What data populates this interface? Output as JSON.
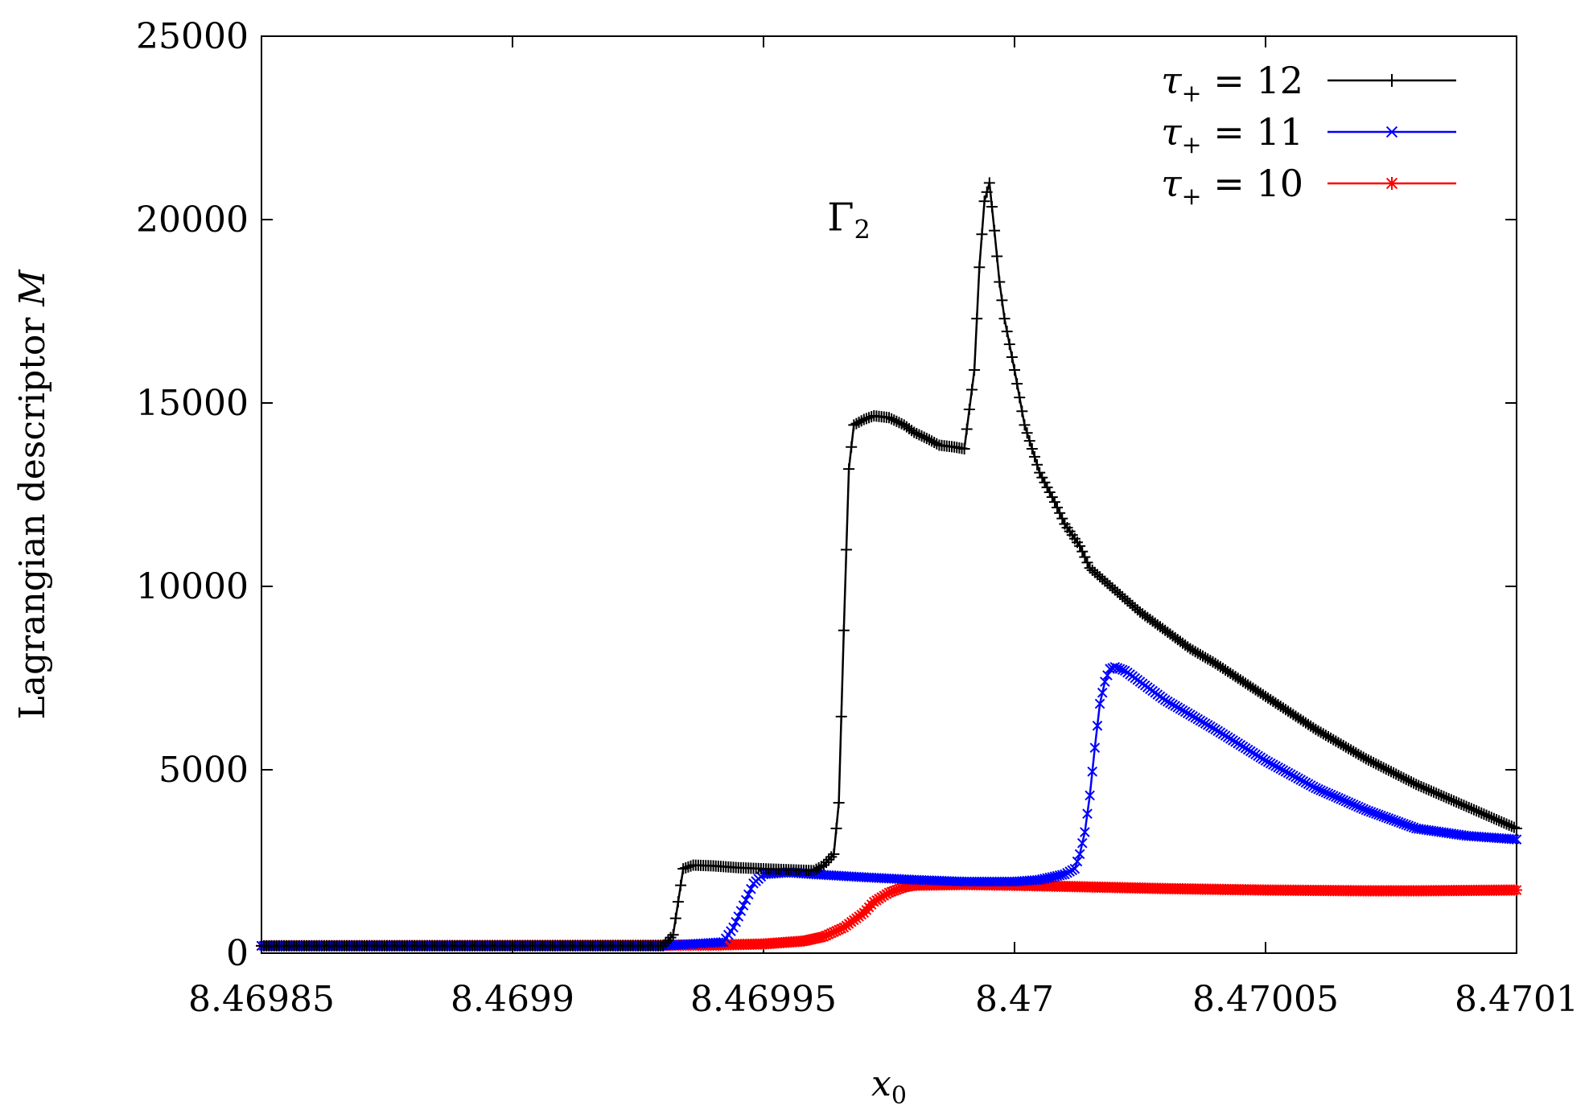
{
  "chart_data": {
    "type": "line",
    "title": "",
    "xlabel": "x",
    "xlabel_sub": "0",
    "ylabel": "Lagrangian descriptor",
    "ylabel_symbol": "M",
    "xlim": [
      8.46985,
      8.4701
    ],
    "ylim": [
      0,
      25000
    ],
    "xticks": [
      8.46985,
      8.4699,
      8.46995,
      8.47,
      8.47005,
      8.4701
    ],
    "xtick_labels": [
      "8.46985",
      "8.4699",
      "8.46995",
      "8.47",
      "8.47005",
      "8.4701"
    ],
    "yticks": [
      0,
      5000,
      10000,
      15000,
      20000,
      25000
    ],
    "ytick_labels": [
      "0",
      "5000",
      "10000",
      "15000",
      "20000",
      "25000"
    ],
    "grid": false,
    "legend_position": "top-right",
    "annotation": {
      "text": "Γ",
      "sub": "2",
      "x": 8.469967,
      "y": 19700
    },
    "series": [
      {
        "name": "τ+ = 12",
        "legend_tau": "τ",
        "legend_sub": "+",
        "legend_value": "= 12",
        "color": "#000000",
        "marker": "plus",
        "points": [
          [
            8.46985,
            200
          ],
          [
            8.46993,
            200
          ],
          [
            8.469932,
            500
          ],
          [
            8.469934,
            2300
          ],
          [
            8.469936,
            2400
          ],
          [
            8.46994,
            2380
          ],
          [
            8.469945,
            2330
          ],
          [
            8.46995,
            2300
          ],
          [
            8.46996,
            2250
          ],
          [
            8.469962,
            2400
          ],
          [
            8.469964,
            2700
          ],
          [
            8.469965,
            4100
          ],
          [
            8.469966,
            8800
          ],
          [
            8.469967,
            13200
          ],
          [
            8.469968,
            14400
          ],
          [
            8.46997,
            14550
          ],
          [
            8.469972,
            14650
          ],
          [
            8.469975,
            14600
          ],
          [
            8.469978,
            14400
          ],
          [
            8.46998,
            14200
          ],
          [
            8.469983,
            14000
          ],
          [
            8.469985,
            13850
          ],
          [
            8.469988,
            13800
          ],
          [
            8.46999,
            13750
          ],
          [
            8.469992,
            15900
          ],
          [
            8.469993,
            18700
          ],
          [
            8.469994,
            20500
          ],
          [
            8.469995,
            21000
          ],
          [
            8.469996,
            19700
          ],
          [
            8.469997,
            18300
          ],
          [
            8.469998,
            17300
          ],
          [
            8.47,
            15900
          ],
          [
            8.470002,
            14400
          ],
          [
            8.470005,
            13100
          ],
          [
            8.470008,
            12300
          ],
          [
            8.47001,
            11700
          ],
          [
            8.470013,
            11100
          ],
          [
            8.470015,
            10500
          ],
          [
            8.47002,
            9900
          ],
          [
            8.470025,
            9300
          ],
          [
            8.47003,
            8800
          ],
          [
            8.470035,
            8300
          ],
          [
            8.47004,
            7900
          ],
          [
            8.47005,
            7000
          ],
          [
            8.47006,
            6100
          ],
          [
            8.47007,
            5300
          ],
          [
            8.47008,
            4600
          ],
          [
            8.47009,
            4000
          ],
          [
            8.4701,
            3400
          ]
        ]
      },
      {
        "name": "τ+ = 11",
        "legend_tau": "τ",
        "legend_sub": "+",
        "legend_value": "= 11",
        "color": "#0000ff",
        "marker": "cross",
        "points": [
          [
            8.46985,
            200
          ],
          [
            8.46993,
            200
          ],
          [
            8.469942,
            300
          ],
          [
            8.469944,
            700
          ],
          [
            8.469946,
            1300
          ],
          [
            8.469948,
            1900
          ],
          [
            8.46995,
            2150
          ],
          [
            8.469955,
            2200
          ],
          [
            8.46996,
            2150
          ],
          [
            8.46997,
            2070
          ],
          [
            8.46998,
            2000
          ],
          [
            8.46999,
            1950
          ],
          [
            8.47,
            1950
          ],
          [
            8.470005,
            2000
          ],
          [
            8.47001,
            2150
          ],
          [
            8.470012,
            2300
          ],
          [
            8.470013,
            2700
          ],
          [
            8.470014,
            3300
          ],
          [
            8.470015,
            4300
          ],
          [
            8.470016,
            5600
          ],
          [
            8.470017,
            6800
          ],
          [
            8.470018,
            7400
          ],
          [
            8.470019,
            7750
          ],
          [
            8.47002,
            7800
          ],
          [
            8.470022,
            7700
          ],
          [
            8.470025,
            7400
          ],
          [
            8.47003,
            6900
          ],
          [
            8.47004,
            6100
          ],
          [
            8.47005,
            5250
          ],
          [
            8.47006,
            4500
          ],
          [
            8.47007,
            3900
          ],
          [
            8.47008,
            3400
          ],
          [
            8.47009,
            3200
          ],
          [
            8.4701,
            3100
          ]
        ]
      },
      {
        "name": "τ+ = 10",
        "legend_tau": "τ",
        "legend_sub": "+",
        "legend_value": "= 10",
        "color": "#ff0000",
        "marker": "star",
        "points": [
          [
            8.46985,
            200
          ],
          [
            8.46994,
            220
          ],
          [
            8.46995,
            250
          ],
          [
            8.469958,
            330
          ],
          [
            8.469962,
            450
          ],
          [
            8.469966,
            700
          ],
          [
            8.469968,
            900
          ],
          [
            8.46997,
            1100
          ],
          [
            8.469972,
            1400
          ],
          [
            8.469975,
            1650
          ],
          [
            8.469978,
            1800
          ],
          [
            8.46998,
            1850
          ],
          [
            8.46999,
            1870
          ],
          [
            8.47,
            1850
          ],
          [
            8.47001,
            1820
          ],
          [
            8.47002,
            1790
          ],
          [
            8.47003,
            1760
          ],
          [
            8.47004,
            1740
          ],
          [
            8.47005,
            1720
          ],
          [
            8.47006,
            1710
          ],
          [
            8.47007,
            1700
          ],
          [
            8.47008,
            1700
          ],
          [
            8.47009,
            1710
          ],
          [
            8.4701,
            1720
          ]
        ]
      }
    ]
  }
}
